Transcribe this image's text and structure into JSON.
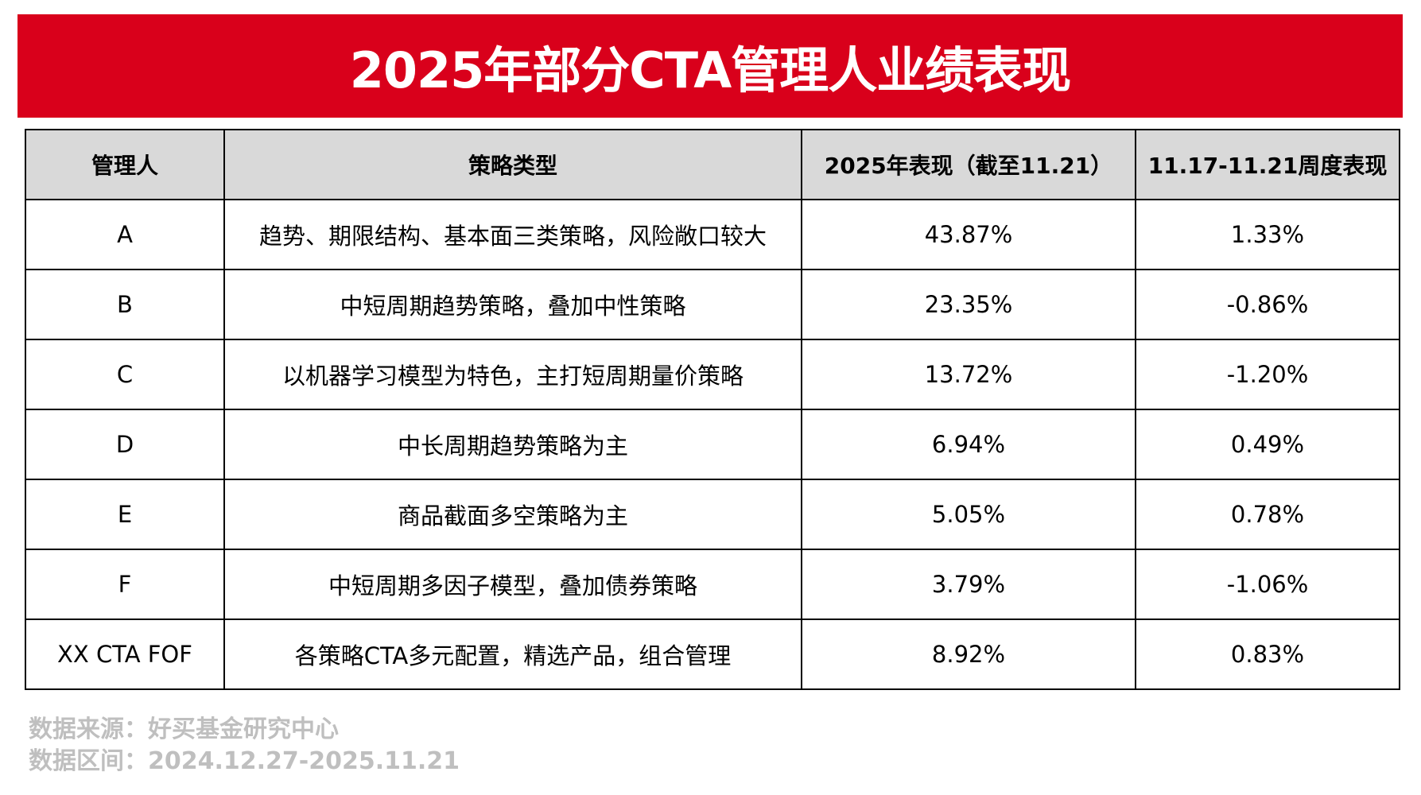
{
  "title": "2025年部分CTA管理人业绩表现",
  "colors": {
    "banner": "#d9001b",
    "header_bg": "#d9d9d9",
    "footer_text": "#bfbfbf"
  },
  "table": {
    "headers": [
      "管理人",
      "策略类型",
      "2025年表现（截至11.21）",
      "11.17-11.21周度表现"
    ],
    "rows": [
      [
        "A",
        "趋势、期限结构、基本面三类策略，风险敞口较大",
        "43.87%",
        "1.33%"
      ],
      [
        "B",
        "中短周期趋势策略，叠加中性策略",
        "23.35%",
        "-0.86%"
      ],
      [
        "C",
        "以机器学习模型为特色，主打短周期量价策略",
        "13.72%",
        "-1.20%"
      ],
      [
        "D",
        "中长周期趋势策略为主",
        "6.94%",
        "0.49%"
      ],
      [
        "E",
        "商品截面多空策略为主",
        "5.05%",
        "0.78%"
      ],
      [
        "F",
        "中短周期多因子模型，叠加债券策略",
        "3.79%",
        "-1.06%"
      ],
      [
        "XX CTA FOF",
        "各策略CTA多元配置，精选产品，组合管理",
        "8.92%",
        "0.83%"
      ]
    ]
  },
  "footer": {
    "source": "数据来源：好买基金研究中心",
    "period": "数据区间：2024.12.27-2025.11.21"
  }
}
